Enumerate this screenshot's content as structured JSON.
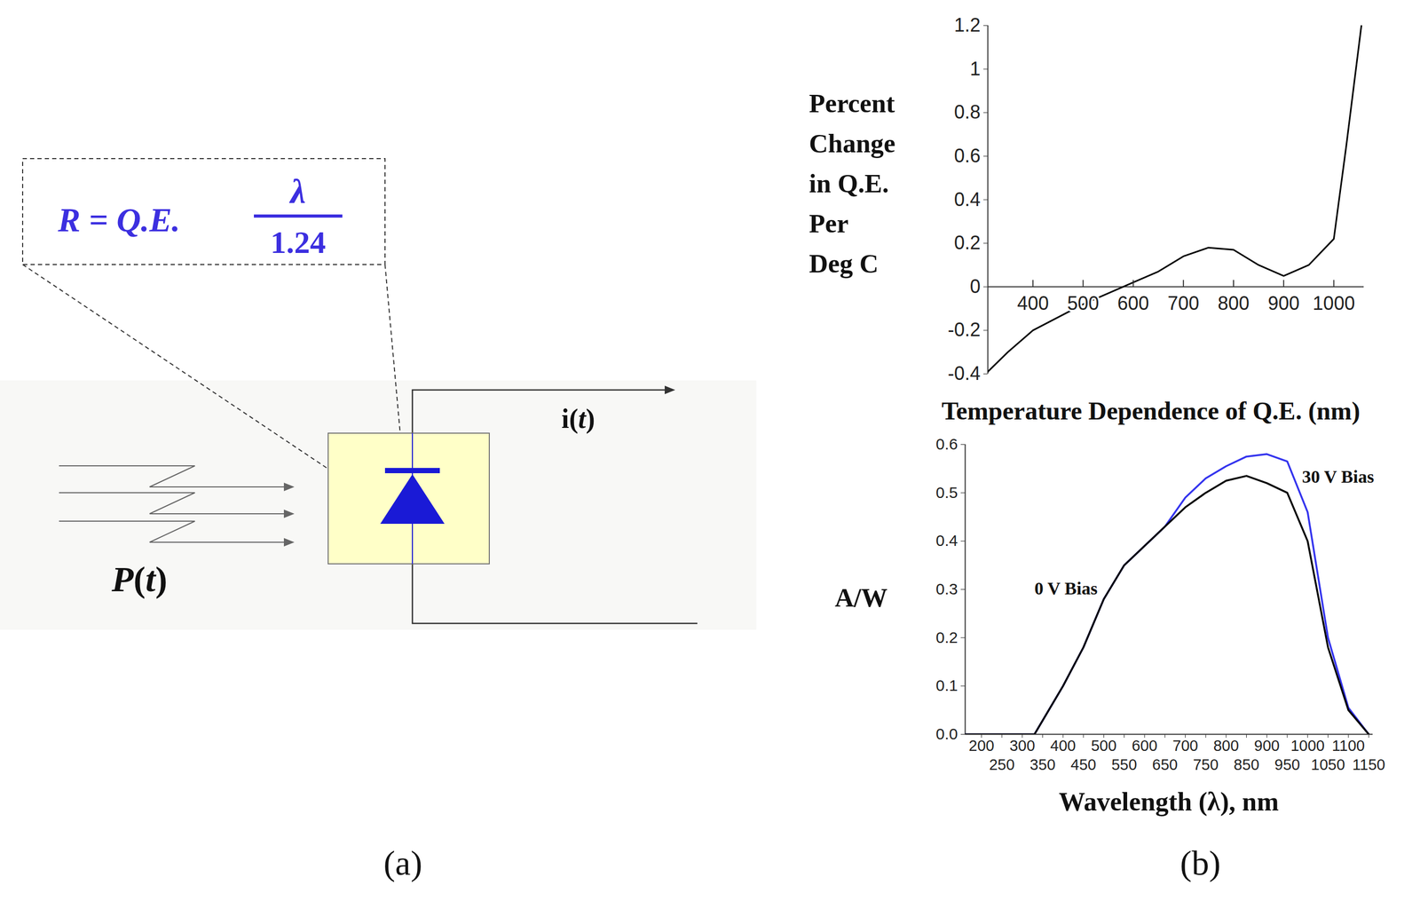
{
  "diagram": {
    "formula": {
      "lhs": "R = Q.E.",
      "numerator": "λ",
      "denominator": "1.24"
    },
    "input": "P(t)",
    "output": "i(t)"
  },
  "panel_labels": [
    "(a)",
    "(b)"
  ],
  "chart_data": [
    {
      "type": "line",
      "x_label": "Temperature Dependence of Q.E. (nm)",
      "y_label": "Percent\nChange\nin Q.E.\nPer\nDeg C",
      "xlim": [
        310,
        1060
      ],
      "ylim": [
        -0.4,
        1.2
      ],
      "xticks": [
        400,
        500,
        600,
        700,
        800,
        900,
        1000
      ],
      "yticks": [
        -0.4,
        -0.2,
        0,
        0.2,
        0.4,
        0.6,
        0.8,
        1,
        1.2
      ],
      "x": [
        310,
        350,
        400,
        450,
        500,
        550,
        600,
        650,
        700,
        750,
        800,
        850,
        900,
        950,
        1000,
        1025,
        1055
      ],
      "series": [
        {
          "color": "#000000",
          "values": [
            -0.39,
            -0.3,
            -0.2,
            -0.14,
            -0.08,
            -0.03,
            0.02,
            0.07,
            0.14,
            0.18,
            0.17,
            0.1,
            0.05,
            0.1,
            0.22,
            0.65,
            1.2
          ]
        }
      ]
    },
    {
      "type": "line",
      "x_label": "Wavelength (λ), nm",
      "y_label": "A/W",
      "xlim": [
        160,
        1160
      ],
      "ylim": [
        0,
        0.6
      ],
      "xticks": [
        200,
        250,
        300,
        350,
        400,
        450,
        500,
        550,
        600,
        650,
        700,
        750,
        800,
        850,
        900,
        950,
        1000,
        1050,
        1100,
        1150
      ],
      "yticks": [
        {
          "value": 0,
          "label": "0.0"
        },
        0.1,
        0.2,
        0.3,
        0.4,
        0.5,
        0.6
      ],
      "x": [
        160,
        330,
        400,
        450,
        500,
        550,
        600,
        650,
        700,
        750,
        800,
        850,
        900,
        950,
        1000,
        1050,
        1100,
        1150
      ],
      "series": [
        {
          "name": "0 V Bias",
          "color": "#000000",
          "values": [
            0,
            0,
            0.1,
            0.18,
            0.28,
            0.35,
            0.39,
            0.43,
            0.47,
            0.5,
            0.525,
            0.535,
            0.52,
            0.5,
            0.4,
            0.18,
            0.05,
            0
          ]
        },
        {
          "name": "30 V Bias",
          "color": "#3333ee",
          "values": [
            0,
            0,
            0.1,
            0.18,
            0.28,
            0.35,
            0.39,
            0.43,
            0.49,
            0.53,
            0.555,
            0.575,
            0.58,
            0.565,
            0.46,
            0.2,
            0.055,
            0
          ]
        }
      ]
    }
  ]
}
